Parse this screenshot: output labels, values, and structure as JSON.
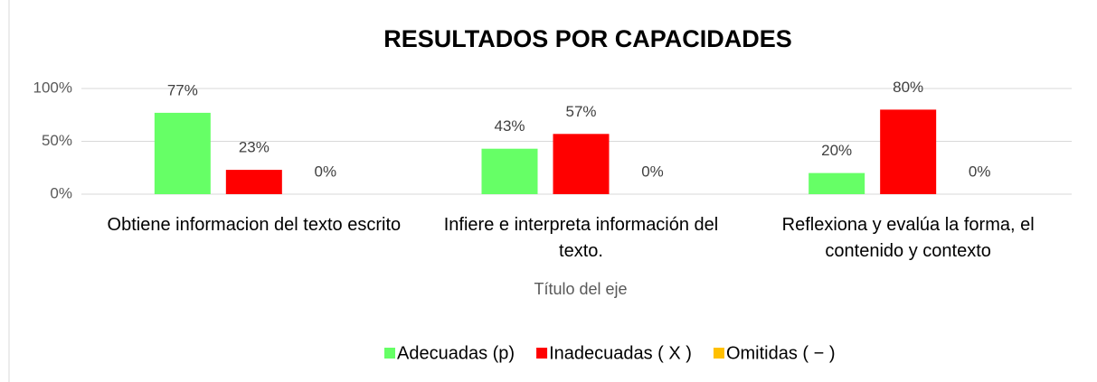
{
  "chart_data": {
    "type": "bar",
    "title": "RESULTADOS POR CAPACIDADES",
    "x_axis_label": "Título del eje",
    "categories": [
      "Obtiene informacion del texto escrito",
      "Infiere e interpreta información del texto.",
      "Reflexiona y evalúa la forma, el contenido y contexto"
    ],
    "series": [
      {
        "name": "Adecuadas (p)",
        "color": "#66ff66",
        "values": [
          77,
          43,
          20
        ],
        "value_labels": [
          "77%",
          "43%",
          "20%"
        ]
      },
      {
        "name": "Inadecuadas ( X )",
        "color": "#ff0000",
        "values": [
          23,
          57,
          80
        ],
        "value_labels": [
          "23%",
          "57%",
          "80%"
        ]
      },
      {
        "name": "Omitidas ( − )",
        "color": "#ffc000",
        "values": [
          0,
          0,
          0
        ],
        "value_labels": [
          "0%",
          "0%",
          "0%"
        ]
      }
    ],
    "ylim": [
      0,
      100
    ],
    "yticks": [
      {
        "value": 0,
        "label": "0%"
      },
      {
        "value": 50,
        "label": "50%"
      },
      {
        "value": 100,
        "label": "100%"
      }
    ],
    "grid": true,
    "legend": "bottom"
  }
}
